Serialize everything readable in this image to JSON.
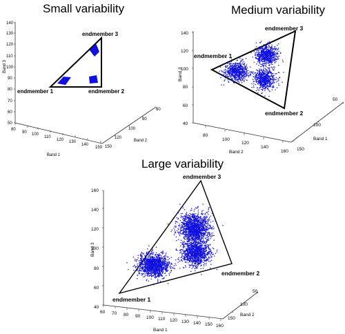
{
  "chart_data": [
    {
      "type": "scatter",
      "title": "Small variability",
      "x_axis": {
        "label": "Band 1",
        "ticks": [
          "80",
          "90",
          "100",
          "110",
          "120",
          "130",
          "140",
          "150"
        ]
      },
      "y_axis": {
        "label": "Band 2",
        "ticks": [
          "60",
          "80",
          "100",
          "120",
          "150"
        ]
      },
      "z_axis": {
        "label": "Band 3",
        "ticks": [
          "50",
          "60",
          "70",
          "80",
          "90",
          "100",
          "110",
          "120",
          "130",
          "140"
        ]
      },
      "endmembers": [
        {
          "name": "endmember 1"
        },
        {
          "name": "endmember 2"
        },
        {
          "name": "endmember 3"
        }
      ],
      "point_color": "#1010e0",
      "clusters": [
        {
          "center": [
            100,
            126,
            95
          ],
          "spread": "small"
        },
        {
          "center": [
            136,
            129,
            97
          ],
          "spread": "small"
        },
        {
          "center": [
            137,
            120,
            121
          ],
          "spread": "small"
        }
      ]
    },
    {
      "type": "scatter",
      "title": "Medium variability",
      "x_axis": {
        "label": "Band 1",
        "ticks": [
          "50",
          "100",
          "150"
        ]
      },
      "y_axis": {
        "label": "Band 2",
        "ticks": [
          "80",
          "100",
          "120",
          "140",
          "160"
        ]
      },
      "z_axis": {
        "label": "Band 3",
        "ticks": [
          "40",
          "60",
          "80",
          "100",
          "120",
          "140"
        ]
      },
      "endmembers": [
        {
          "name": "endmember 1"
        },
        {
          "name": "endmember 2"
        },
        {
          "name": "endmember 3"
        }
      ],
      "point_color": "#1010e0",
      "clusters": [
        {
          "center": [
            98,
            91,
            97
          ],
          "spread": "medium"
        },
        {
          "center": [
            118,
            143,
            120
          ],
          "spread": "medium"
        },
        {
          "center": [
            128,
            141,
            89
          ],
          "spread": "medium"
        }
      ]
    },
    {
      "type": "scatter",
      "title": "Large variability",
      "x_axis": {
        "label": "Band 1",
        "ticks": [
          "60",
          "70",
          "80",
          "90",
          "100",
          "110",
          "120",
          "130",
          "140",
          "150",
          "160"
        ]
      },
      "y_axis": {
        "label": "Band 2",
        "ticks": [
          "50",
          "100",
          "150"
        ]
      },
      "z_axis": {
        "label": "Band 3",
        "ticks": [
          "40",
          "60",
          "80",
          "100",
          "120",
          "140",
          "160"
        ]
      },
      "endmembers": [
        {
          "name": "endmember 1"
        },
        {
          "name": "endmember 2"
        },
        {
          "name": "endmember 3"
        }
      ],
      "point_color": "#1010e0",
      "clusters": [
        {
          "center": [
            108,
            82,
            84
          ],
          "spread": "large"
        },
        {
          "center": [
            139,
            123,
            123
          ],
          "spread": "large"
        },
        {
          "center": [
            141,
            126,
            97
          ],
          "spread": "large"
        }
      ]
    }
  ]
}
